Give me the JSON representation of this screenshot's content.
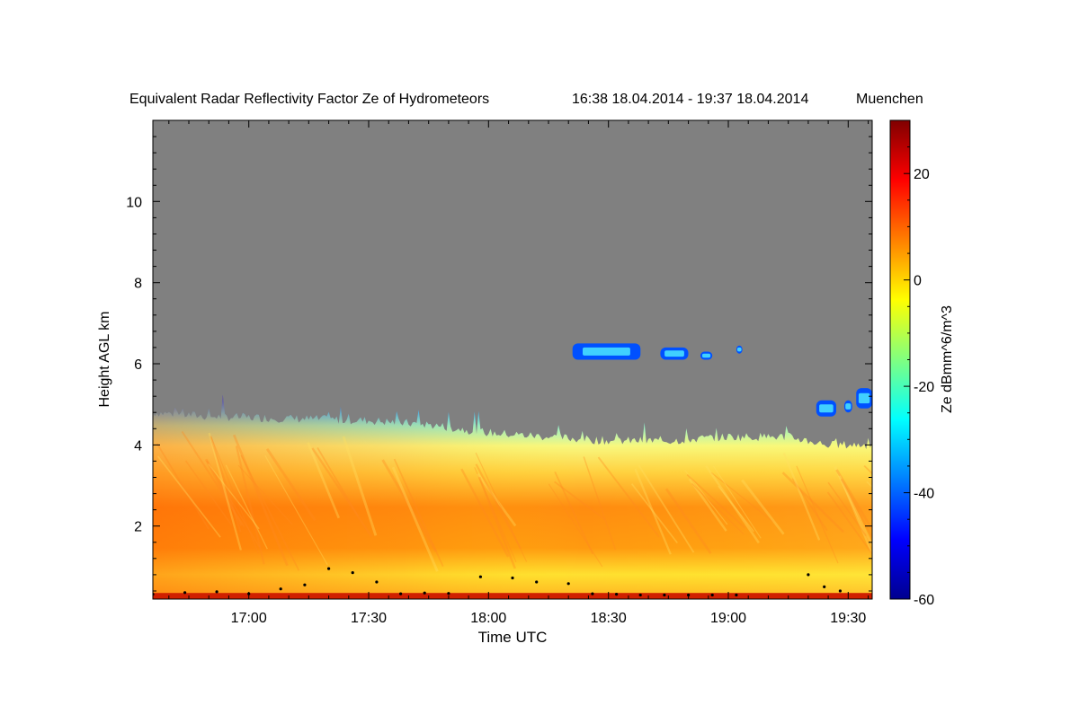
{
  "chart_data": {
    "type": "heatmap",
    "title": "Equivalent Radar Reflectivity Factor Ze of Hydrometeors",
    "time_range": "16:38 18.04.2014 - 19:37 18.04.2014",
    "location": "Muenchen",
    "xlabel": "Time UTC",
    "ylabel": "Height AGL km",
    "x_ticks": [
      "17:00",
      "17:30",
      "18:00",
      "18:30",
      "19:00",
      "19:30"
    ],
    "x_tick_minutes": [
      1020,
      1050,
      1080,
      1110,
      1140,
      1170
    ],
    "xlim_minutes": [
      996,
      1176
    ],
    "y_ticks": [
      2,
      4,
      6,
      8,
      10
    ],
    "ylim": [
      0.2,
      12.0
    ],
    "colorbar": {
      "label": "Ze dBmm^6/m^3",
      "ticks": [
        -60,
        -40,
        -20,
        0,
        20
      ],
      "range": [
        -60,
        30
      ],
      "colormap": "jet"
    },
    "colors": {
      "no_data": "#808080",
      "cloud_base": "#000000"
    },
    "cloud_top_profile": {
      "time_minutes": [
        996,
        1010,
        1030,
        1050,
        1065,
        1080,
        1095,
        1110,
        1125,
        1140,
        1155,
        1165,
        1176
      ],
      "height_km": [
        4.8,
        4.7,
        4.65,
        4.6,
        4.5,
        4.3,
        4.2,
        4.1,
        4.1,
        4.2,
        4.2,
        4.0,
        4.0
      ]
    },
    "upper_cloud_patches": [
      {
        "t_start": 1101,
        "t_end": 1118,
        "h_low": 6.1,
        "h_high": 6.5
      },
      {
        "t_start": 1123,
        "t_end": 1130,
        "h_low": 6.1,
        "h_high": 6.4
      },
      {
        "t_start": 1133,
        "t_end": 1136,
        "h_low": 6.1,
        "h_high": 6.3
      },
      {
        "t_start": 1142,
        "t_end": 1143.5,
        "h_low": 6.25,
        "h_high": 6.45
      },
      {
        "t_start": 1162,
        "t_end": 1167,
        "h_low": 4.7,
        "h_high": 5.1
      },
      {
        "t_start": 1169,
        "t_end": 1171,
        "h_low": 4.8,
        "h_high": 5.1
      },
      {
        "t_start": 1172,
        "t_end": 1176,
        "h_low": 4.9,
        "h_high": 5.4
      }
    ],
    "cloud_base_points": {
      "time_minutes": [
        996,
        1004,
        1012,
        1020,
        1028,
        1034,
        1040,
        1046,
        1052,
        1058,
        1064,
        1070,
        1078,
        1086,
        1092,
        1100,
        1106,
        1112,
        1118,
        1124,
        1130,
        1136,
        1142,
        1160,
        1164,
        1168
      ],
      "height_km": [
        0.32,
        0.36,
        0.38,
        0.33,
        0.45,
        0.55,
        0.95,
        0.85,
        0.62,
        0.33,
        0.35,
        0.34,
        0.75,
        0.72,
        0.62,
        0.58,
        0.33,
        0.32,
        0.3,
        0.3,
        0.3,
        0.3,
        0.3,
        0.8,
        0.5,
        0.4
      ]
    }
  }
}
